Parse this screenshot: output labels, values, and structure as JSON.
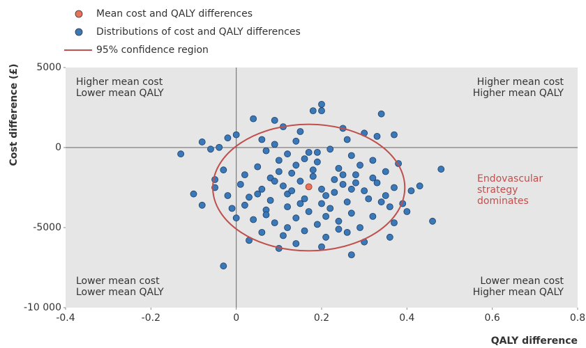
{
  "chart_data": {
    "type": "scatter",
    "xlabel": "QALY difference",
    "ylabel": "Cost difference (£)",
    "xlim": [
      -0.4,
      0.8
    ],
    "ylim": [
      -10000,
      5000
    ],
    "xticks": [
      -0.4,
      -0.2,
      0,
      0.2,
      0.4,
      0.6,
      0.8
    ],
    "yticks": [
      5000,
      0,
      -5000,
      {
        "value": -10000,
        "label": "-10 000"
      }
    ],
    "series": [
      {
        "name": "Mean cost and QALY differences",
        "color": "#e8735a",
        "x": [
          0.17
        ],
        "values": [
          -2450
        ]
      },
      {
        "name": "Distributions of cost and QALY differences",
        "color": "#3a78b8",
        "x": [
          -0.13,
          -0.08,
          -0.06,
          -0.04,
          -0.1,
          -0.08,
          -0.03,
          0.2,
          0.2,
          0.18,
          0.34,
          0.48,
          0.46,
          0.43,
          0.27,
          0.04,
          0.09,
          0.3,
          0.37,
          0.36,
          0.11,
          0.15,
          0.25,
          0.0,
          -0.02,
          0.06,
          0.33,
          0.41,
          0.39,
          0.4,
          0.0,
          -0.01,
          -0.05,
          -0.05,
          -0.03,
          0.03,
          0.1,
          0.2,
          0.14,
          0.3,
          0.07,
          0.12,
          0.17,
          0.22,
          0.27,
          0.32,
          0.1,
          0.05,
          0.14,
          0.19,
          0.24,
          0.29,
          0.35,
          0.02,
          0.08,
          0.13,
          0.18,
          0.23,
          0.28,
          0.33,
          0.37,
          0.01,
          0.06,
          0.11,
          0.15,
          0.2,
          0.25,
          0.3,
          0.35,
          0.03,
          0.08,
          0.12,
          0.16,
          0.21,
          0.26,
          0.31,
          0.36,
          0.02,
          0.07,
          0.12,
          0.17,
          0.22,
          0.27,
          0.32,
          0.04,
          0.09,
          0.14,
          0.19,
          0.24,
          0.29,
          0.06,
          0.11,
          0.16,
          0.21,
          0.26,
          0.09,
          0.13,
          0.18,
          0.23,
          0.28,
          0.15,
          0.1,
          0.2,
          0.25,
          0.05,
          0.34,
          0.16,
          0.21,
          0.12,
          0.27,
          0.07,
          0.32,
          0.19,
          0.24,
          0.14,
          0.09,
          0.26,
          0.38,
          -0.02,
          0.37
        ],
        "values": [
          -400,
          350,
          -100,
          10,
          -2900,
          -3600,
          -7400,
          2700,
          2300,
          2300,
          2100,
          -1350,
          -4600,
          -2400,
          -6700,
          1800,
          1700,
          900,
          800,
          -5600,
          1300,
          1000,
          1200,
          800,
          600,
          500,
          700,
          -2700,
          -3500,
          -4000,
          -4400,
          -3800,
          -2000,
          -2500,
          -1400,
          -5800,
          -6300,
          -6200,
          -6000,
          -5900,
          -200,
          -400,
          -300,
          -100,
          -500,
          -800,
          -800,
          -1200,
          -1100,
          -900,
          -1300,
          -1100,
          -1500,
          -1700,
          -1900,
          -1600,
          -1800,
          -2000,
          -1700,
          -2200,
          -2500,
          -2300,
          -2600,
          -2400,
          -2100,
          -2600,
          -2300,
          -2700,
          -3000,
          -3100,
          -3300,
          -2900,
          -3200,
          -3000,
          -3400,
          -3200,
          -3700,
          -3600,
          -3900,
          -3700,
          -4000,
          -3800,
          -4100,
          -4300,
          -4500,
          -4700,
          -4400,
          -4800,
          -4600,
          -5000,
          -5300,
          -5500,
          -5200,
          -5600,
          -5300,
          -2100,
          -2700,
          -1400,
          -2800,
          -2200,
          -3500,
          -1500,
          -3500,
          -1700,
          -2900,
          -3400,
          -700,
          -4300,
          -5000,
          -2600,
          -4200,
          -1900,
          -300,
          -5100,
          400,
          200,
          500,
          -1000,
          -3000,
          -4700
        ]
      }
    ],
    "confidence_region": {
      "name": "95% confidence region",
      "color": "#c0504d",
      "center": [
        0.17,
        -2500
      ],
      "rx": 0.225,
      "ry": 3950
    },
    "quadrant_labels": {
      "top_left": [
        "Higher mean cost",
        "Lower mean QALY"
      ],
      "top_right": [
        "Higher mean cost",
        "Higher mean QALY"
      ],
      "bottom_left": [
        "Lower mean cost",
        "Lower mean QALY"
      ],
      "bottom_right": [
        "Lower mean cost",
        "Higher mean QALY"
      ]
    },
    "annotation": {
      "text": [
        "Endovascular",
        "strategy",
        "dominates"
      ],
      "color": "#c0504d"
    }
  }
}
